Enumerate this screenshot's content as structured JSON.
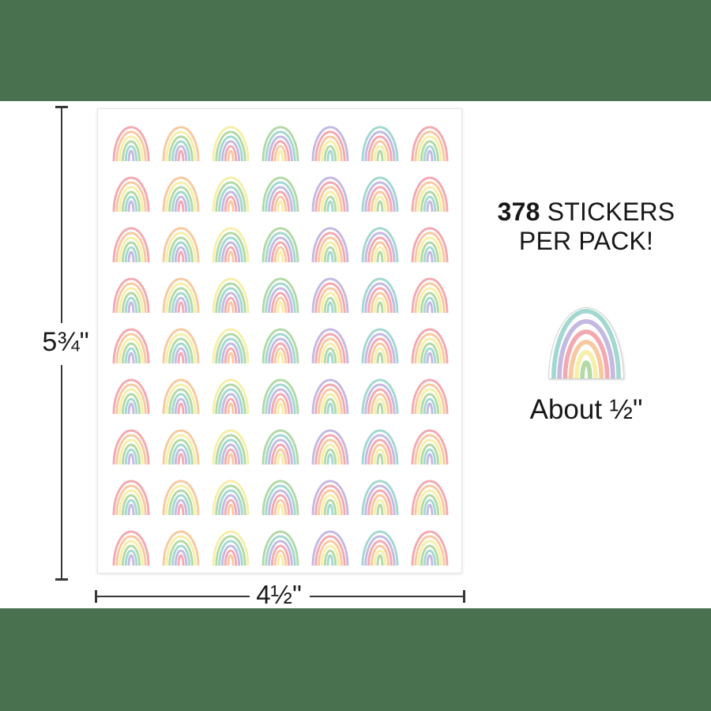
{
  "title_block": {
    "count": "378",
    "stickers_word": "STICKERS",
    "line2": "PER PACK!"
  },
  "size_note": {
    "label": "About ½\""
  },
  "dimensions": {
    "height": "5¾\"",
    "width": "4½\""
  },
  "colors": {
    "band_green": "#49704f",
    "text": "#1b1b1b",
    "dim_line": "#373737",
    "sheet_border": "#e4e4e4",
    "sticker_cut_edge": "#cfcfcf",
    "pastel": {
      "pink": "#f3a9b1",
      "orange": "#f8c9a1",
      "yellow": "#f6efa9",
      "green": "#b3d9a6",
      "teal": "#a3d8d0",
      "purple": "#c4b9e1"
    }
  },
  "sticker_sheet": {
    "rows": 9,
    "cols": 7,
    "cycle": [
      "pink",
      "orange",
      "yellow",
      "green",
      "teal",
      "purple"
    ],
    "column_starts": [
      0,
      1,
      2,
      3,
      5,
      4,
      0
    ],
    "sticker_count_on_sheet": 63
  },
  "big_sticker": {
    "start": 4
  }
}
